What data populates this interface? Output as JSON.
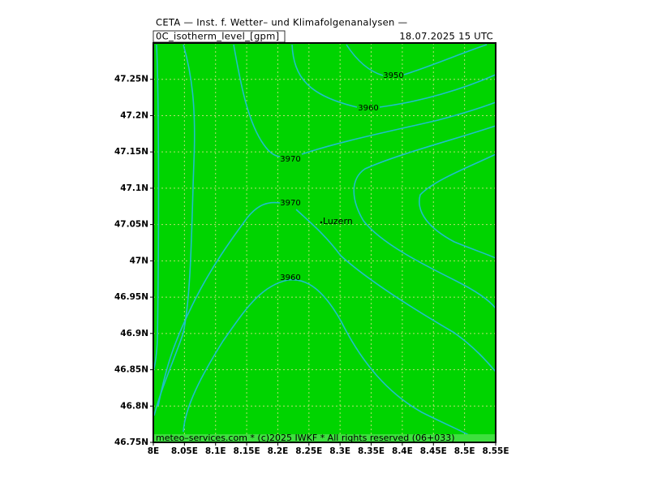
{
  "header": {
    "title": "CETA — Inst. f. Wetter– und Klimafolgenanalysen —",
    "field": "0C_isotherm_level_[gpm]",
    "valid": "18.07.2025  15 UTC"
  },
  "chart_data": {
    "type": "contour",
    "xlim": [
      8,
      8.55
    ],
    "ylim": [
      46.75,
      47.3
    ],
    "xticks": [
      {
        "value": 8,
        "label": "8E"
      },
      {
        "value": 8.05,
        "label": "8.05E"
      },
      {
        "value": 8.1,
        "label": "8.1E"
      },
      {
        "value": 8.15,
        "label": "8.15E"
      },
      {
        "value": 8.2,
        "label": "8.2E"
      },
      {
        "value": 8.25,
        "label": "8.25E"
      },
      {
        "value": 8.3,
        "label": "8.3E"
      },
      {
        "value": 8.35,
        "label": "8.35E"
      },
      {
        "value": 8.4,
        "label": "8.4E"
      },
      {
        "value": 8.45,
        "label": "8.45E"
      },
      {
        "value": 8.5,
        "label": "8.5E"
      },
      {
        "value": 8.55,
        "label": "8.55E"
      }
    ],
    "yticks": [
      {
        "value": 46.75,
        "label": "46.75N"
      },
      {
        "value": 46.8,
        "label": "46.8N"
      },
      {
        "value": 46.85,
        "label": "46.85N"
      },
      {
        "value": 46.9,
        "label": "46.9N"
      },
      {
        "value": 46.95,
        "label": "46.95N"
      },
      {
        "value": 47,
        "label": "47N"
      },
      {
        "value": 47.05,
        "label": "47.05N"
      },
      {
        "value": 47.1,
        "label": "47.1N"
      },
      {
        "value": 47.15,
        "label": "47.15N"
      },
      {
        "value": 47.2,
        "label": "47.2N"
      },
      {
        "value": 47.25,
        "label": "47.25N"
      }
    ],
    "grid": true,
    "color": "#00d400",
    "line_color": "#1fc0c8",
    "contour_labels": [
      3950,
      3960,
      3970,
      3970,
      3960
    ],
    "city": "Luzern",
    "footer": "meteo–services.com * (c)2025 IWKF * All rights reserved (06+033)"
  }
}
